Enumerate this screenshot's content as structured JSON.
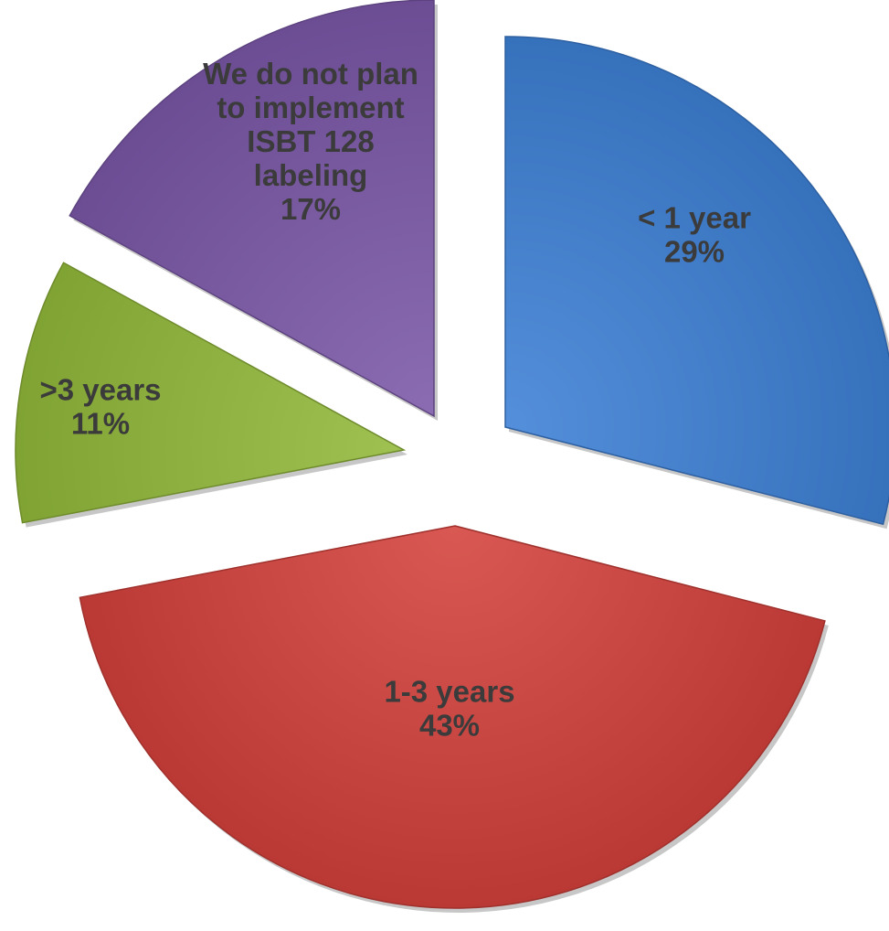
{
  "chart_data": {
    "type": "pie",
    "title": "",
    "slices": [
      {
        "label": "< 1 year",
        "value": 29,
        "value_label": "29%",
        "color": "#3d80d6"
      },
      {
        "label": "1-3 years",
        "value": 43,
        "value_label": "43%",
        "color": "#d4413c"
      },
      {
        "label": ">3 years",
        "value": 11,
        "value_label": "11%",
        "color": "#92b93a"
      },
      {
        "label": "We do not plan to implement ISBT 128 labeling",
        "value": 17,
        "value_label": "17%",
        "color": "#7b58a8"
      }
    ],
    "start": "12 o'clock",
    "direction": "clockwise",
    "exploded": true,
    "legend": "none"
  }
}
